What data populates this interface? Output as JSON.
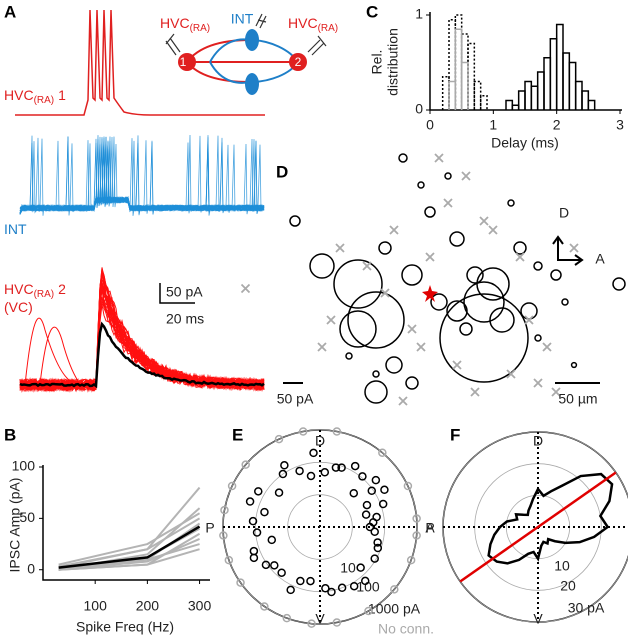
{
  "panel_a": {
    "letter": "A",
    "trace_labels": [
      {
        "main": "HVC",
        "sub": "(RA)",
        "suffix": "1"
      },
      {
        "main": "INT"
      },
      {
        "main": "HVC",
        "sub": "(RA)",
        "suffix": "2",
        "line2": "(VC)"
      }
    ],
    "scale": [
      "50 pA",
      "20 ms"
    ],
    "schematic": {
      "left": {
        "main": "HVC",
        "sub": "(RA)"
      },
      "int": "INT",
      "right": {
        "main": "HVC",
        "sub": "(RA)"
      },
      "cells": [
        "1",
        "2"
      ]
    }
  },
  "chart_data": [
    {
      "type": "line",
      "panel": "B",
      "xlabel": "Spike Freq (Hz)",
      "ylabel": "IPSC Amp (pA)",
      "x": [
        30,
        200,
        300
      ],
      "xlim": [
        0,
        320
      ],
      "xticks": [
        100,
        200,
        300
      ],
      "ylim": [
        -10,
        100
      ],
      "yticks": [
        0,
        50,
        100
      ],
      "series": [
        {
          "color": "#b4b4b4",
          "values": [
            0,
            5,
            20
          ]
        },
        {
          "color": "#b4b4b4",
          "values": [
            0,
            10,
            25
          ]
        },
        {
          "color": "#b4b4b4",
          "values": [
            2,
            20,
            80
          ]
        },
        {
          "color": "#b4b4b4",
          "values": [
            0,
            15,
            60
          ]
        },
        {
          "color": "#b4b4b4",
          "values": [
            5,
            25,
            55
          ]
        },
        {
          "color": "#b4b4b4",
          "values": [
            0,
            5,
            35
          ]
        },
        {
          "color": "#b4b4b4",
          "values": [
            0,
            10,
            45
          ]
        },
        {
          "color": "#b4b4b4",
          "values": [
            3,
            20,
            50
          ]
        },
        {
          "color": "#b4b4b4",
          "values": [
            0,
            8,
            30
          ]
        },
        {
          "color": "#b4b4b4",
          "values": [
            0,
            12,
            40
          ]
        },
        {
          "color": "#000000",
          "values": [
            2,
            12,
            42
          ]
        }
      ]
    },
    {
      "type": "histogram",
      "panel": "C",
      "xlabel": "Delay (ms)",
      "ylabel": [
        "Rel.",
        "distribution"
      ],
      "xlim": [
        0,
        3
      ],
      "xticks": [
        0,
        1,
        2,
        3
      ],
      "ylim": [
        0,
        1
      ],
      "yticks": [
        0,
        1
      ],
      "series": [
        {
          "color": "#000000",
          "dashed": false,
          "bins": [
            1.2,
            1.3,
            1.4,
            1.5,
            1.6,
            1.7,
            1.8,
            1.9,
            2.0,
            2.1,
            2.2,
            2.3,
            2.4,
            2.5,
            2.6
          ],
          "values": [
            0.1,
            0.05,
            0.2,
            0.3,
            0.25,
            0.4,
            0.55,
            0.75,
            0.9,
            0.6,
            0.5,
            0.3,
            0.2,
            0.1
          ]
        },
        {
          "color": "#000000",
          "dashed": true,
          "bins": [
            0.2,
            0.3,
            0.4,
            0.5,
            0.6,
            0.7,
            0.8,
            0.9
          ],
          "values": [
            0.35,
            0.95,
            1,
            0.8,
            0.7,
            0.3,
            0.15
          ]
        },
        {
          "color": "#aaaaaa",
          "dashed": false,
          "bins": [
            0.3,
            0.4,
            0.5,
            0.6
          ],
          "values": [
            0.3,
            0.85,
            0.5
          ]
        }
      ]
    },
    {
      "type": "scatter",
      "panel": "D",
      "compass": [
        "D",
        "A"
      ],
      "scale_labels": [
        "50 pA",
        "50 µm"
      ],
      "origin_color": "#e00000",
      "series": [
        {
          "marker": "circle",
          "color": "#000000",
          "x": [
            -150,
            -120,
            -80,
            -60,
            -80,
            -50,
            -20,
            -40,
            -60,
            -20,
            0,
            30,
            50,
            70,
            60,
            80,
            60,
            30,
            10,
            100,
            120,
            140,
            150,
            120,
            90,
            -10,
            -30,
            20,
            -60,
            160,
            110,
            40,
            -90,
            210
          ],
          "y": [
            80,
            30,
            10,
            -30,
            -40,
            50,
            20,
            -80,
            -110,
            -100,
            90,
            60,
            20,
            10,
            -10,
            -30,
            -50,
            -20,
            -10,
            50,
            30,
            20,
            -10,
            -50,
            100,
            120,
            150,
            130,
            -90,
            -80,
            -20,
            -40,
            -70,
            10
          ],
          "sizes": [
            25,
            60,
            120,
            140,
            90,
            30,
            50,
            40,
            55,
            30,
            25,
            35,
            40,
            80,
            100,
            60,
            220,
            50,
            40,
            30,
            20,
            25,
            15,
            15,
            15,
            15,
            20,
            15,
            15,
            12,
            40,
            30,
            15,
            30
          ]
        },
        {
          "marker": "cross",
          "color": "#aaaaaa",
          "x": [
            -205,
            -100,
            -70,
            -40,
            -20,
            0,
            20,
            40,
            60,
            100,
            110,
            130,
            90,
            -110,
            -120,
            -10,
            30,
            50,
            140,
            -30,
            160,
            70,
            -50,
            10,
            120
          ],
          "y": [
            5,
            50,
            30,
            70,
            -40,
            40,
            100,
            130,
            80,
            40,
            -30,
            -60,
            -90,
            -30,
            -60,
            -60,
            -80,
            -110,
            -110,
            -120,
            50,
            70,
            0,
            150,
            -100
          ]
        }
      ]
    },
    {
      "type": "polar-scatter",
      "panel": "E",
      "directions": [
        "D",
        "A",
        "V",
        "P"
      ],
      "rscale": "log",
      "rlim": [
        1,
        1000
      ],
      "rticks": [
        10,
        100,
        {
          "value": 1000,
          "label": "1000 pA"
        }
      ],
      "series": [
        {
          "color": "#000000",
          "theta": [
            10,
            20,
            25,
            35,
            45,
            60,
            75,
            85,
            95,
            110,
            125,
            140,
            150,
            165,
            175,
            185,
            195,
            205,
            215,
            230,
            245,
            260,
            275,
            290,
            300,
            315,
            330,
            345,
            5,
            15,
            30,
            50,
            70,
            100,
            120,
            160,
            200,
            220,
            250,
            280,
            310,
            340,
            355,
            0,
            40
          ],
          "r": [
            60,
            120,
            40,
            90,
            30,
            150,
            80,
            50,
            200,
            70,
            100,
            45,
            160,
            60,
            120,
            90,
            35,
            180,
            110,
            70,
            140,
            50,
            80,
            100,
            130,
            60,
            90,
            70,
            45,
            30,
            200,
            110,
            90,
            40,
            160,
            200,
            150,
            70,
            60,
            110,
            150,
            80,
            50,
            35,
            180
          ]
        }
      ],
      "no_conn": {
        "label": "No conn.",
        "color": "#aaaaaa",
        "theta": [
          5,
          25,
          50,
          80,
          100,
          115,
          140,
          155,
          170,
          185,
          200,
          215,
          235,
          250,
          265,
          280,
          300,
          320,
          340,
          355
        ]
      }
    },
    {
      "type": "polar-line",
      "panel": "F",
      "directions": [
        "D",
        "A",
        "V",
        "P"
      ],
      "rlim": [
        0,
        30
      ],
      "rticks": [
        10,
        20,
        {
          "value": 30,
          "label": "30 pA"
        }
      ],
      "theta": [
        0,
        10,
        20,
        30,
        40,
        50,
        60,
        70,
        80,
        90,
        100,
        110,
        120,
        130,
        140,
        150,
        160,
        170,
        180,
        190,
        200,
        210,
        220,
        230,
        240,
        250,
        260,
        270,
        280,
        290,
        300,
        310,
        320,
        330,
        340,
        350
      ],
      "r": [
        22,
        20,
        24,
        27,
        26,
        21,
        15,
        12,
        10,
        12,
        9,
        7,
        6,
        5,
        6,
        8,
        7,
        10,
        12,
        14,
        16,
        18,
        17,
        15,
        12,
        9,
        8,
        10,
        6,
        5,
        6,
        5,
        7,
        10,
        14,
        18
      ],
      "color": "#000000",
      "axis": {
        "angle": 35,
        "color": "#e00000"
      }
    }
  ]
}
